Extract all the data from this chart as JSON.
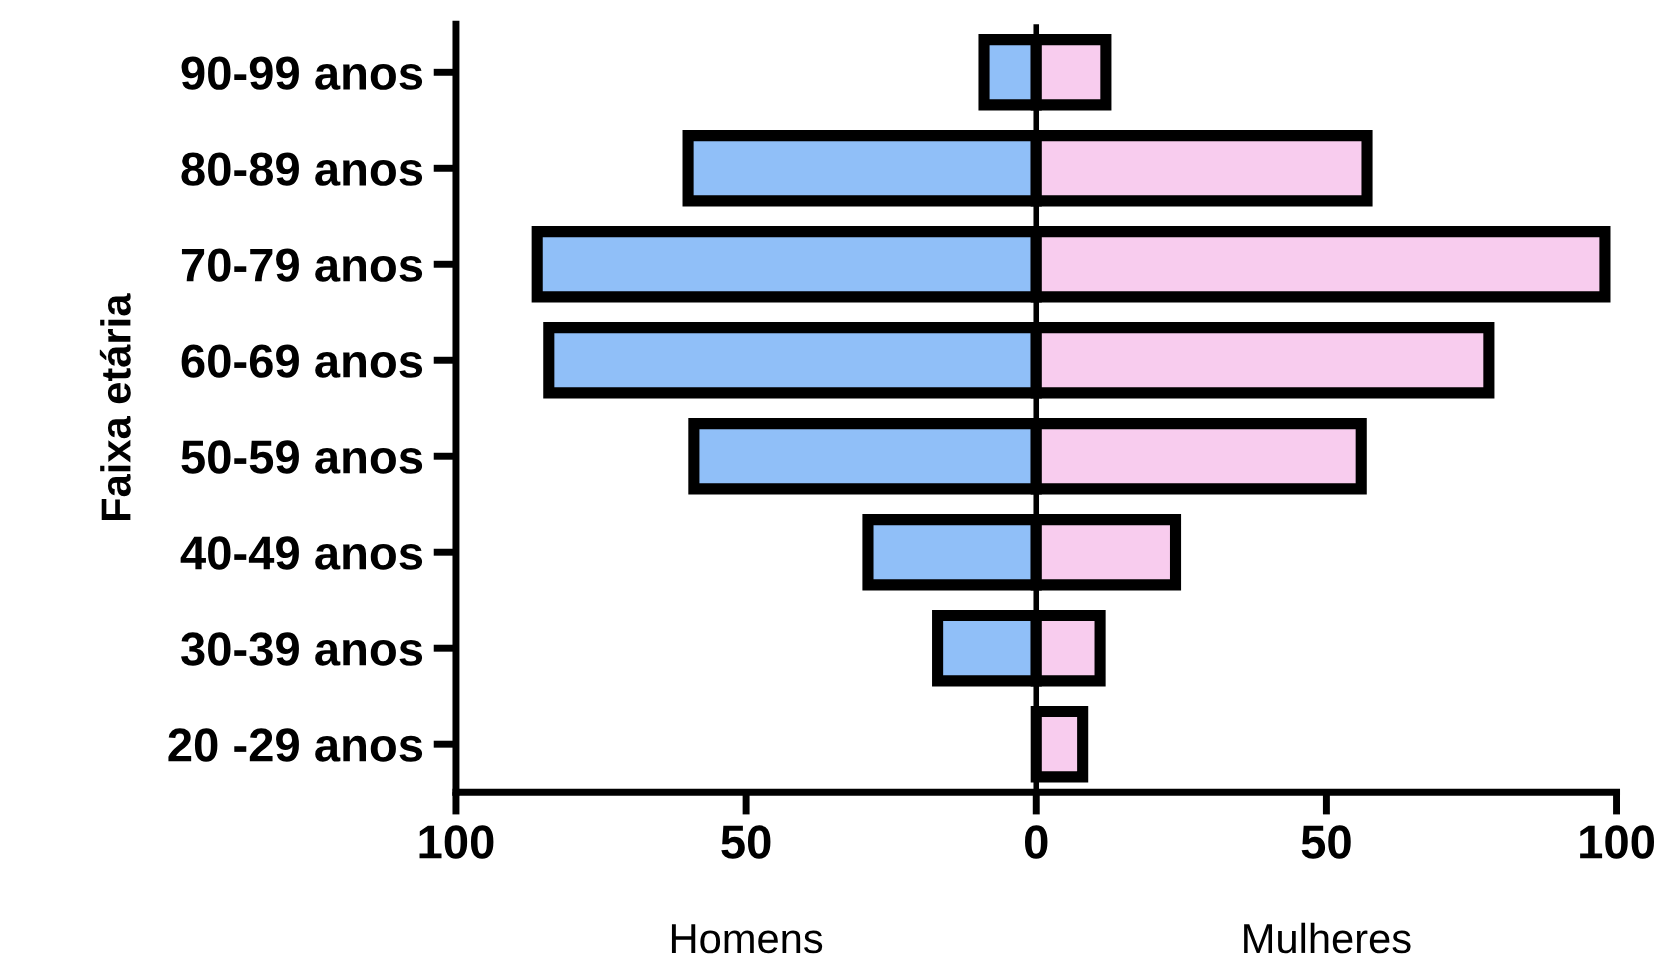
{
  "chart_data": {
    "type": "bar",
    "orientation": "horizontal",
    "ylabel": "Faixa etária",
    "categories": [
      "90-99 anos",
      "80-89 anos",
      "70-79 anos",
      "60-69 anos",
      "50-59 anos",
      "40-49 anos",
      "30-39 anos",
      "20 -29 anos"
    ],
    "series": [
      {
        "color": "#90bff8",
        "values": [
          -9,
          -60,
          -86,
          -84,
          -59,
          -29,
          -17,
          0
        ]
      },
      {
        "color": "#f8ccee",
        "values": [
          12,
          57,
          98,
          78,
          56,
          24,
          11,
          8
        ]
      }
    ],
    "stacked": true,
    "annotations": [
      "Homens",
      "Mulheres"
    ],
    "xlim": [
      -100,
      100
    ],
    "xticks": [
      {
        "value": -100,
        "label": "100"
      },
      {
        "value": -50,
        "label": "50"
      },
      0,
      50,
      100
    ],
    "ref_lines": [
      {
        "axis": "x",
        "value": 0,
        "label": null
      }
    ],
    "grid": false,
    "legend": false
  }
}
